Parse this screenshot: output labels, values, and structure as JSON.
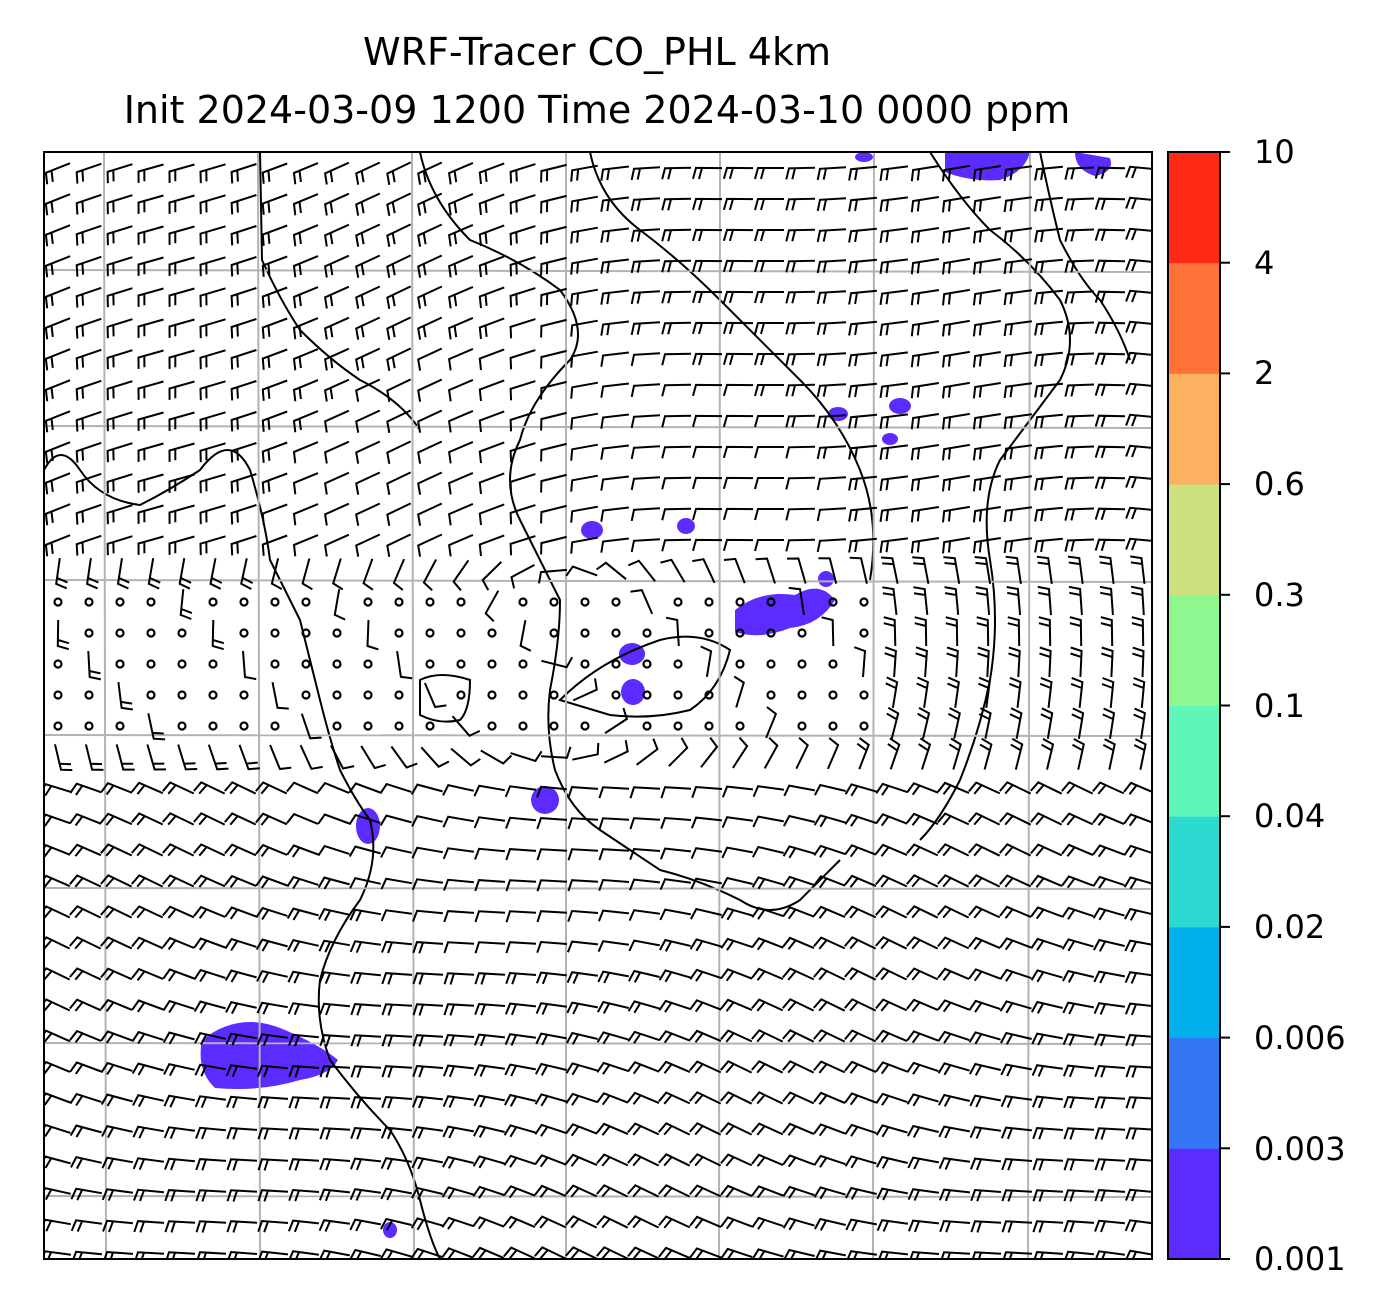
{
  "title": {
    "line1": "WRF-Tracer CO_PHL 4km",
    "line2": "Init 2024-03-09 1200 Time 2024-03-10 0000 ppm"
  },
  "colorbar": {
    "levels": [
      "0.001",
      "0.003",
      "0.006",
      "0.02",
      "0.04",
      "0.1",
      "0.3",
      "0.6",
      "2",
      "4",
      "10"
    ],
    "colors": [
      "#5c2bff",
      "#3576f5",
      "#00b1ee",
      "#2ddad2",
      "#60f5b9",
      "#8ef78f",
      "#cde07f",
      "#fbb15f",
      "#ff7338",
      "#ff2a13"
    ]
  },
  "map": {
    "field_color": "#5c2bff",
    "coastline_color": "#000000",
    "gridline_color": "#b3b3b3",
    "barb_color": "#000000"
  }
}
